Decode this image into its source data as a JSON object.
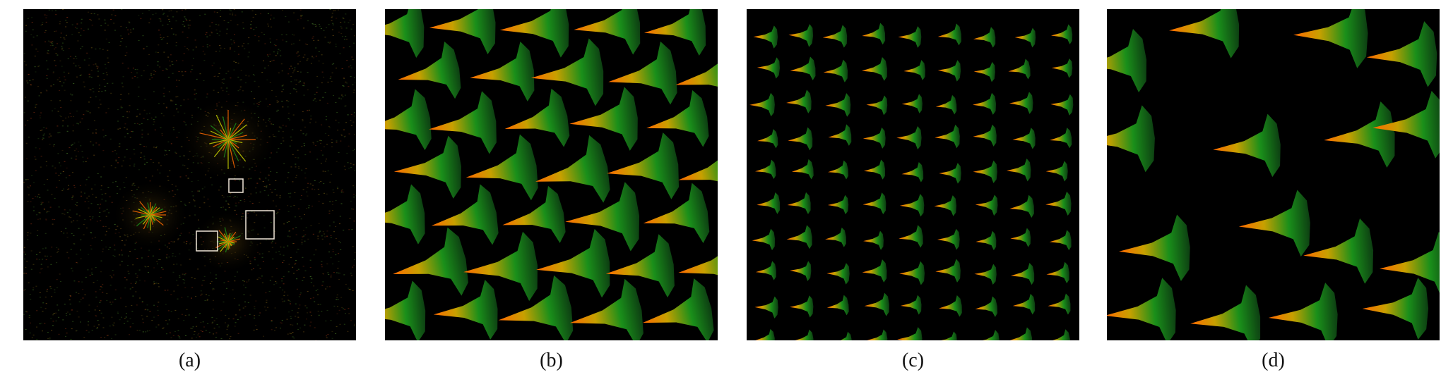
{
  "figure": {
    "panels": [
      {
        "id": "a",
        "caption": "(a)",
        "content": "vector-field-overview"
      },
      {
        "id": "b",
        "caption": "(b)",
        "content": "dense-glyph-closeup"
      },
      {
        "id": "c",
        "caption": "(c)",
        "content": "small-glyph-closeup"
      },
      {
        "id": "d",
        "caption": "(d)",
        "content": "sparse-glyph-closeup"
      }
    ],
    "colors": {
      "background": "#000000",
      "glyph_head": "#ff6a00",
      "glyph_mid": "#c8a000",
      "glyph_body": "#1a8f1a",
      "glyph_tail": "#0d3d12",
      "highlight_box": "#f0e6d8"
    }
  }
}
